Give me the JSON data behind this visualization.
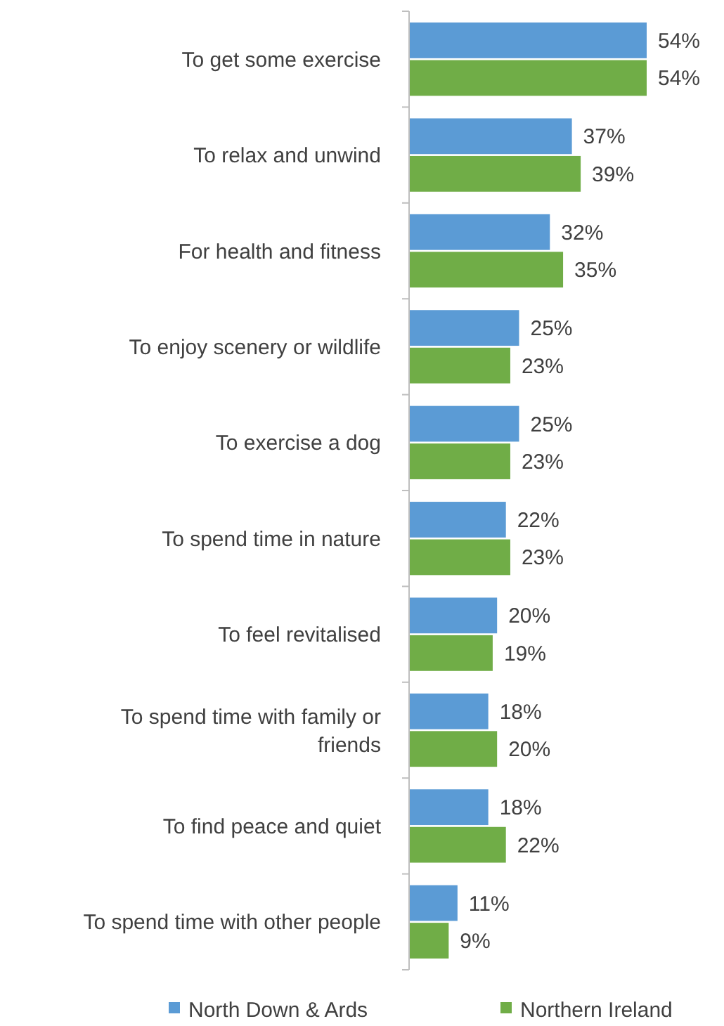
{
  "chart_data": {
    "type": "bar",
    "orientation": "horizontal",
    "categories": [
      "To get some exercise",
      "To relax and unwind",
      "For health and fitness",
      "To enjoy scenery or wildlife",
      "To exercise a dog",
      "To spend time in nature",
      "To feel revitalised",
      "To spend time with family or friends",
      "To find peace and quiet",
      "To spend time with other people"
    ],
    "series": [
      {
        "name": "North Down & Ards",
        "color": "#5b9bd5",
        "values": [
          54,
          37,
          32,
          25,
          25,
          22,
          20,
          18,
          18,
          11
        ],
        "value_labels": [
          "54%",
          "37%",
          "32%",
          "25%",
          "25%",
          "22%",
          "20%",
          "18%",
          "18%",
          "11%"
        ]
      },
      {
        "name": "Northern Ireland",
        "color": "#70ad47",
        "values": [
          54,
          39,
          35,
          23,
          23,
          23,
          19,
          20,
          22,
          9
        ],
        "value_labels": [
          "54%",
          "39%",
          "35%",
          "23%",
          "23%",
          "23%",
          "19%",
          "20%",
          "22%",
          "9%"
        ]
      }
    ],
    "legend": "bottom"
  }
}
